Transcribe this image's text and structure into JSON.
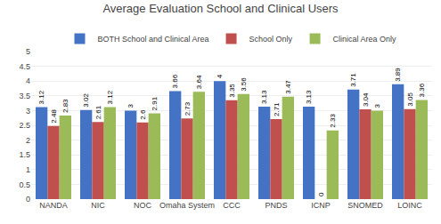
{
  "chart_data": {
    "type": "bar",
    "title": "Average Evaluation School and Clinical Users",
    "categories": [
      "NANDA",
      "NIC",
      "NOC",
      "Omaha System",
      "CCC",
      "PNDS",
      "ICNP",
      "SNOMED",
      "LOINC"
    ],
    "series": [
      {
        "name": "BOTH School and Clinical Area",
        "color": "#4472C4",
        "values": [
          3.12,
          3.02,
          3,
          3.66,
          4,
          3.13,
          3.13,
          3.71,
          3.89
        ]
      },
      {
        "name": "School Only",
        "color": "#C0504D",
        "values": [
          2.48,
          2.61,
          2.6,
          2.73,
          3.35,
          2.71,
          0,
          3.04,
          3.05
        ]
      },
      {
        "name": "Clinical Area Only",
        "color": "#9BBB59",
        "values": [
          2.83,
          3.12,
          2.91,
          3.64,
          3.56,
          3.47,
          2.33,
          3,
          3.36
        ]
      }
    ],
    "ylim": [
      0,
      5
    ],
    "yticks": [
      0,
      0.5,
      1,
      1.5,
      2,
      2.5,
      3,
      3.5,
      4,
      4.5,
      5
    ],
    "grid": true,
    "legend": "top",
    "data_labels": true
  }
}
